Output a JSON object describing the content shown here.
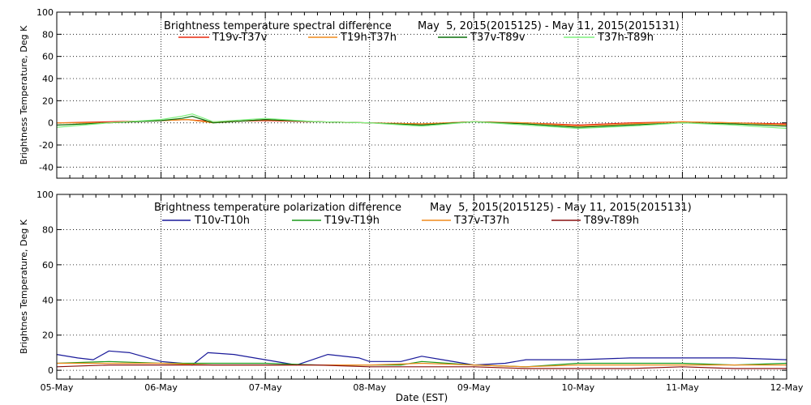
{
  "x_axis": {
    "label": "Date (EST)",
    "ticks": [
      "05-May",
      "06-May",
      "07-May",
      "08-May",
      "09-May",
      "10-May",
      "11-May",
      "12-May"
    ]
  },
  "chart_data": [
    {
      "type": "line",
      "title": "Brightness temperature spectral difference",
      "date_range": "May  5, 2015(2015125) - May 11, 2015(2015131)",
      "ylabel": "Brightness Temperature, Deg K",
      "xlim": [
        0,
        7
      ],
      "ylim": [
        -50,
        100
      ],
      "yticks": [
        -40,
        -20,
        0,
        20,
        40,
        60,
        80,
        100
      ],
      "grid": true,
      "legend_placement": "top",
      "series": [
        {
          "name": "T19v-T37v",
          "color": "#e8280f",
          "x": [
            0,
            0.5,
            1,
            1.25,
            1.5,
            2,
            2.5,
            3,
            3.5,
            4,
            4.5,
            5,
            5.5,
            6,
            6.5,
            7
          ],
          "y": [
            0,
            1,
            2,
            3,
            1,
            2,
            1,
            0,
            -1,
            1,
            0,
            -2,
            0,
            1,
            0,
            -1
          ]
        },
        {
          "name": "T19h-T37h",
          "color": "#f08a1c",
          "x": [
            0,
            0.5,
            1,
            1.25,
            1.5,
            2,
            2.5,
            3,
            3.5,
            4,
            4.5,
            5,
            5.5,
            6,
            6.5,
            7
          ],
          "y": [
            0,
            0,
            2,
            3,
            0,
            3,
            1,
            0,
            -1,
            1,
            0,
            -3,
            -1,
            1,
            0,
            -2
          ]
        },
        {
          "name": "T37v-T89v",
          "color": "#0a6e0a",
          "x": [
            0,
            0.5,
            1,
            1.2,
            1.3,
            1.5,
            2,
            2.5,
            3,
            3.5,
            4,
            4.5,
            5,
            5.5,
            6,
            6.5,
            7
          ],
          "y": [
            -2,
            0,
            2,
            4,
            6,
            0,
            3,
            1,
            0,
            -2,
            1,
            -1,
            -4,
            -2,
            0,
            -1,
            -3
          ]
        },
        {
          "name": "T37h-T89h",
          "color": "#7ef07e",
          "x": [
            0,
            0.5,
            1,
            1.2,
            1.3,
            1.5,
            2,
            2.5,
            3,
            3.5,
            4,
            4.5,
            5,
            5.5,
            6,
            6.5,
            7
          ],
          "y": [
            -4,
            0,
            3,
            6,
            8,
            1,
            4,
            1,
            0,
            -3,
            1,
            -2,
            -5,
            -3,
            0,
            -2,
            -5
          ]
        }
      ]
    },
    {
      "type": "line",
      "title": "Brightness temperature polarization difference",
      "date_range": "May  5, 2015(2015125) - May 11, 2015(2015131)",
      "ylabel": "Brightnes Temperature, Deg K",
      "xlim": [
        0,
        7
      ],
      "ylim": [
        -5,
        100
      ],
      "yticks": [
        0,
        20,
        40,
        60,
        80,
        100
      ],
      "grid": true,
      "legend_placement": "top",
      "series": [
        {
          "name": "T10v-T10h",
          "color": "#1a1a9a",
          "x": [
            0,
            0.2,
            0.35,
            0.5,
            0.7,
            1,
            1.2,
            1.3,
            1.45,
            1.7,
            2,
            2.2,
            2.3,
            2.4,
            2.6,
            2.9,
            3.0,
            3.3,
            3.5,
            3.7,
            4,
            4.3,
            4.5,
            4.7,
            5,
            5.5,
            6,
            6.5,
            7
          ],
          "y": [
            9,
            7,
            6,
            11,
            10,
            5,
            4,
            3,
            10,
            9,
            6,
            4,
            3,
            5,
            9,
            7,
            5,
            5,
            8,
            6,
            3,
            4,
            6,
            6,
            6,
            7,
            7,
            7,
            6
          ]
        },
        {
          "name": "T19v-T19h",
          "color": "#1a9a1a",
          "x": [
            0,
            0.5,
            1,
            1.5,
            2,
            2.5,
            3,
            3.3,
            3.5,
            4,
            4.5,
            5,
            5.5,
            6,
            6.5,
            7
          ],
          "y": [
            4,
            5,
            4,
            4,
            4,
            3,
            3,
            3,
            5,
            3,
            2,
            4,
            4,
            4,
            3,
            4
          ]
        },
        {
          "name": "T37v-T37h",
          "color": "#f08a1c",
          "x": [
            0,
            0.5,
            1,
            1.5,
            2,
            2.5,
            3,
            3.5,
            4,
            4.5,
            5,
            5.5,
            6,
            6.5,
            7
          ],
          "y": [
            4,
            4,
            4,
            3,
            3,
            3,
            3,
            4,
            3,
            2,
            3,
            3,
            3,
            3,
            3
          ]
        },
        {
          "name": "T89v-T89h",
          "color": "#8a1010",
          "x": [
            0,
            0.5,
            1,
            1.5,
            2,
            2.5,
            3,
            3.5,
            4,
            4.5,
            5,
            5.5,
            6,
            6.5,
            7
          ],
          "y": [
            2,
            3,
            3,
            3,
            3,
            3,
            2,
            2,
            2,
            1,
            1,
            1,
            2,
            1,
            1
          ]
        }
      ]
    }
  ]
}
